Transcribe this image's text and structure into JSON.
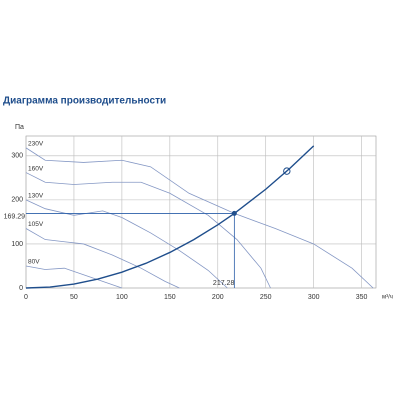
{
  "chart_data": {
    "type": "line",
    "title": "Диаграмма производительности",
    "ylabel": "Па",
    "xlabel": "м³/ч",
    "xlim": [
      0,
      365
    ],
    "ylim": [
      0,
      345
    ],
    "xticks": [
      0,
      50,
      100,
      150,
      200,
      250,
      300,
      350
    ],
    "yticks": [
      0,
      100,
      200,
      300
    ],
    "grid": true,
    "series": [
      {
        "name": "230V",
        "color": "#8497c4",
        "x": [
          0,
          20,
          60,
          100,
          130,
          170,
          217.28,
          260,
          300,
          340,
          362
        ],
        "values": [
          318,
          290,
          285,
          290,
          275,
          215,
          169.29,
          135,
          100,
          45,
          0
        ]
      },
      {
        "name": "160V",
        "color": "#8497c4",
        "x": [
          0,
          20,
          50,
          90,
          120,
          150,
          190,
          220,
          245,
          255
        ],
        "values": [
          262,
          240,
          235,
          240,
          240,
          215,
          165,
          110,
          45,
          0
        ]
      },
      {
        "name": "130V",
        "color": "#8497c4",
        "x": [
          0,
          20,
          50,
          80,
          100,
          130,
          160,
          190,
          210
        ],
        "values": [
          200,
          180,
          165,
          175,
          160,
          125,
          85,
          40,
          0
        ]
      },
      {
        "name": "105V",
        "color": "#8497c4",
        "x": [
          0,
          20,
          40,
          60,
          90,
          120,
          145,
          160
        ],
        "values": [
          135,
          110,
          105,
          100,
          75,
          45,
          15,
          0
        ]
      },
      {
        "name": "80V",
        "color": "#8497c4",
        "x": [
          0,
          20,
          40,
          60,
          80,
          100
        ],
        "values": [
          50,
          42,
          45,
          30,
          15,
          0
        ]
      }
    ],
    "system_curve": {
      "color": "#1f4e8c",
      "x": [
        0,
        25,
        50,
        75,
        100,
        125,
        150,
        175,
        200,
        217.28,
        250,
        275,
        300
      ],
      "values": [
        0,
        2.24,
        8.97,
        20.2,
        35.9,
        56.0,
        80.7,
        109.8,
        143.4,
        169.29,
        224.1,
        271.2,
        322.7
      ]
    },
    "marker": {
      "x": 272,
      "y": 265.3
    },
    "operating_point": {
      "x": 217.28,
      "y": 169.29
    }
  }
}
